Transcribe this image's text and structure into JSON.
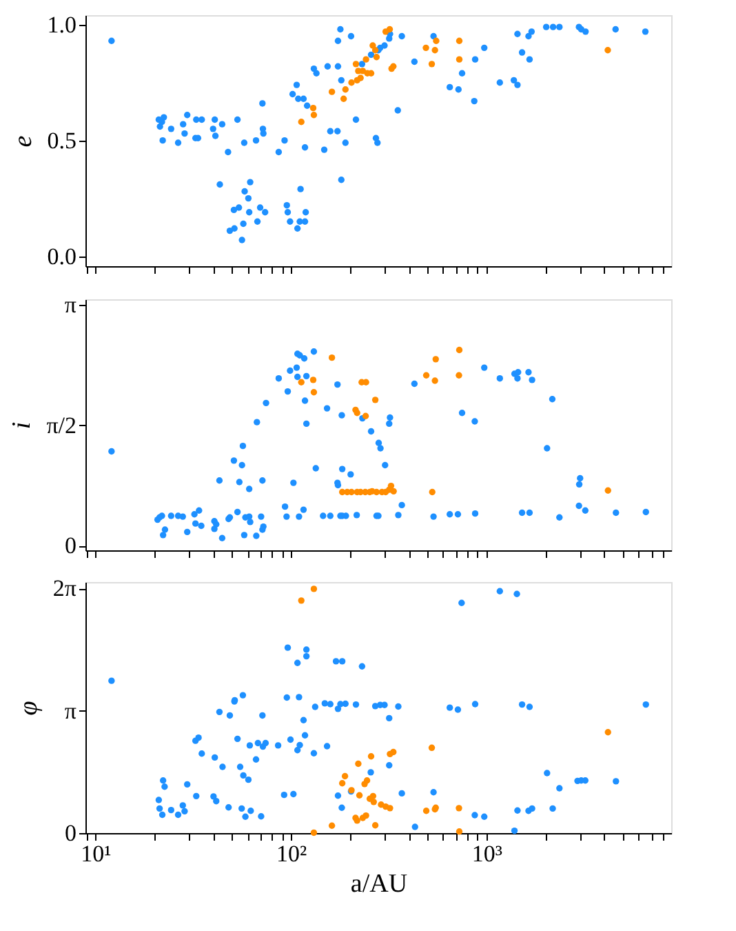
{
  "chart_data": [
    {
      "type": "scatter",
      "ylabel": "e",
      "log": "x",
      "xlim": [
        8.9,
        8800
      ],
      "ylim": [
        -0.043,
        1.041
      ],
      "yticks": [
        {
          "value": 0,
          "label": "0.0"
        },
        0.5,
        {
          "value": 1,
          "label": "1.0"
        }
      ],
      "xticks": [
        {
          "value": 9,
          "label": null
        },
        {
          "value": 10,
          "label": null
        },
        {
          "value": 20,
          "label": null
        },
        {
          "value": 30,
          "label": null
        },
        {
          "value": 40,
          "label": null
        },
        {
          "value": 50,
          "label": null
        },
        {
          "value": 60,
          "label": null
        },
        {
          "value": 70,
          "label": null
        },
        {
          "value": 80,
          "label": null
        },
        {
          "value": 90,
          "label": null
        },
        {
          "value": 100,
          "label": null
        },
        {
          "value": 200,
          "label": null
        },
        {
          "value": 300,
          "label": null
        },
        {
          "value": 400,
          "label": null
        },
        {
          "value": 500,
          "label": null
        },
        {
          "value": 600,
          "label": null
        },
        {
          "value": 700,
          "label": null
        },
        {
          "value": 800,
          "label": null
        },
        {
          "value": 900,
          "label": null
        },
        {
          "value": 1000,
          "label": null
        },
        {
          "value": 2000,
          "label": null
        },
        {
          "value": 3000,
          "label": null
        },
        {
          "value": 4000,
          "label": null
        },
        {
          "value": 5000,
          "label": null
        },
        {
          "value": 6000,
          "label": null
        },
        {
          "value": 7000,
          "label": null
        },
        {
          "value": 8000,
          "label": null
        }
      ],
      "tick_labels": "y",
      "grid": false,
      "legend": false,
      "marker": "circle",
      "series": [
        {
          "color": "#1e90ff",
          "x": [
            12.1,
            179,
            174,
            203,
            369,
            536,
            974,
            1440,
            1700,
            1640,
            2020,
            2190,
            2360,
            2970,
            3050,
            3210,
            4570,
            6490,
            1520,
            1660,
            875,
            428,
            321,
            318,
            301,
            286,
            280,
            257,
            231,
            154,
            174,
            131,
            135,
            181,
            107,
            102,
            109,
            116,
            121,
            71.5,
            1170,
            1380,
            1440,
            649,
            719,
            750,
            866,
            352,
            215,
            159,
            173,
            190,
            272,
            277,
            118,
            148,
            86.6,
            92.8,
            57.7,
            66.3,
            71.9,
            72.3,
            47.7,
            53.3,
            40.8,
            44.5,
            40,
            41.1,
            29.5,
            32.8,
            35,
            21.1,
            22.4,
            21.9,
            21.4,
            24.4,
            28.1,
            28.6,
            32.5,
            33.5,
            22.1,
            26.5,
            43.3,
            61.9,
            58,
            60.6,
            54.2,
            51.1,
            61.2,
            69.6,
            73.8,
            48.7,
            51.4,
            57.1,
            67.4,
            56.2,
            95.3,
            96.3,
            112,
            119,
            99,
            111,
            118,
            108,
            181
          ],
          "values": [
            0.93,
            0.98,
            0.93,
            0.95,
            0.95,
            0.95,
            0.9,
            0.96,
            0.97,
            0.95,
            0.99,
            0.99,
            0.99,
            0.99,
            0.98,
            0.97,
            0.98,
            0.97,
            0.88,
            0.85,
            0.85,
            0.84,
            0.96,
            0.94,
            0.91,
            0.9,
            0.89,
            0.87,
            0.83,
            0.82,
            0.82,
            0.81,
            0.79,
            0.76,
            0.74,
            0.7,
            0.68,
            0.68,
            0.65,
            0.66,
            0.75,
            0.76,
            0.74,
            0.73,
            0.72,
            0.79,
            0.67,
            0.63,
            0.59,
            0.54,
            0.54,
            0.49,
            0.51,
            0.49,
            0.47,
            0.46,
            0.45,
            0.5,
            0.49,
            0.5,
            0.55,
            0.53,
            0.45,
            0.59,
            0.59,
            0.57,
            0.55,
            0.52,
            0.61,
            0.59,
            0.59,
            0.59,
            0.6,
            0.58,
            0.56,
            0.55,
            0.57,
            0.53,
            0.51,
            0.51,
            0.5,
            0.49,
            0.31,
            0.32,
            0.28,
            0.25,
            0.21,
            0.2,
            0.19,
            0.21,
            0.19,
            0.11,
            0.12,
            0.14,
            0.15,
            0.07,
            0.22,
            0.19,
            0.29,
            0.19,
            0.15,
            0.15,
            0.15,
            0.12,
            0.33
          ]
        },
        {
          "color": "#ff8c00",
          "x": [
            320,
            305,
            262,
            270,
            274,
            242,
            215,
            221,
            233,
            246,
            257,
            227,
            218,
            204,
            190,
            162,
            186,
            130,
            131,
            113,
            327,
            334,
            490,
            545,
            553,
            525,
            726,
            726,
            4170
          ],
          "values": [
            0.98,
            0.97,
            0.91,
            0.89,
            0.86,
            0.85,
            0.83,
            0.8,
            0.8,
            0.79,
            0.79,
            0.77,
            0.76,
            0.75,
            0.72,
            0.71,
            0.68,
            0.64,
            0.61,
            0.58,
            0.81,
            0.82,
            0.9,
            0.89,
            0.93,
            0.83,
            0.93,
            0.85,
            0.89
          ]
        }
      ]
    },
    {
      "type": "scatter",
      "ylabel": "i",
      "log": "x",
      "xlim": [
        8.9,
        8800
      ],
      "ylim": [
        -0.059,
        3.21
      ],
      "yticks": [
        0,
        {
          "value": 1.5708,
          "label": "π/2"
        },
        {
          "value": 3.1416,
          "label": "π"
        }
      ],
      "xticks": [
        {
          "value": 9,
          "label": null
        },
        {
          "value": 10,
          "label": null
        },
        {
          "value": 20,
          "label": null
        },
        {
          "value": 30,
          "label": null
        },
        {
          "value": 40,
          "label": null
        },
        {
          "value": 50,
          "label": null
        },
        {
          "value": 60,
          "label": null
        },
        {
          "value": 70,
          "label": null
        },
        {
          "value": 80,
          "label": null
        },
        {
          "value": 90,
          "label": null
        },
        {
          "value": 100,
          "label": null
        },
        {
          "value": 200,
          "label": null
        },
        {
          "value": 300,
          "label": null
        },
        {
          "value": 400,
          "label": null
        },
        {
          "value": 500,
          "label": null
        },
        {
          "value": 600,
          "label": null
        },
        {
          "value": 700,
          "label": null
        },
        {
          "value": 800,
          "label": null
        },
        {
          "value": 900,
          "label": null
        },
        {
          "value": 1000,
          "label": null
        },
        {
          "value": 2000,
          "label": null
        },
        {
          "value": 3000,
          "label": null
        },
        {
          "value": 4000,
          "label": null
        },
        {
          "value": 5000,
          "label": null
        },
        {
          "value": 6000,
          "label": null
        },
        {
          "value": 7000,
          "label": null
        },
        {
          "value": 8000,
          "label": null
        }
      ],
      "tick_labels": "y",
      "grid": false,
      "legend": false,
      "marker": "circle",
      "series": [
        {
          "color": "#1e90ff",
          "x": [
            12.1,
            131,
            108,
            111,
            117,
            99,
            107,
            86.6,
            108,
            120,
            96.3,
            118,
            74.6,
            67,
            120,
            173,
            153,
            182,
            232,
            257,
            281,
            287,
            321,
            318,
            303,
            428,
            974,
            1170,
            1390,
            1450,
            1440,
            1640,
            1710,
            2170,
            750,
            871,
            2040,
            2980,
            3010,
            2970,
            3200,
            4590,
            6530,
            2360,
            1520,
            1660,
            875,
            714,
            649,
            536,
            369,
            354,
            274,
            280,
            217,
            179,
            183,
            191,
            159,
            146,
            202,
            183,
            174,
            173,
            134,
            103,
            93.3,
            95,
            110,
            116,
            70.4,
            72.3,
            71.5,
            66.5,
            57.7,
            61.9,
            61.2,
            58.5,
            53.3,
            48,
            48.7,
            44.5,
            40.6,
            40.6,
            41.5,
            34.8,
            32.5,
            33.9,
            32.1,
            29.5,
            28,
            26.5,
            24.4,
            22.7,
            22.2,
            21.9,
            20.8,
            21.3,
            43.1,
            54.5,
            61.2,
            71.5,
            51.1,
            56.2,
            56.8
          ],
          "values": [
            1.23,
            2.53,
            2.5,
            2.48,
            2.44,
            2.28,
            2.32,
            2.18,
            2.2,
            2.21,
            2.01,
            1.89,
            1.86,
            1.61,
            1.59,
            2.1,
            1.79,
            1.7,
            1.66,
            1.49,
            1.34,
            1.27,
            1.67,
            1.59,
            1.05,
            2.11,
            2.32,
            2.18,
            2.24,
            2.26,
            2.18,
            2.26,
            2.16,
            1.91,
            1.73,
            1.62,
            1.27,
            0.8,
            0.88,
            0.52,
            0.46,
            0.43,
            0.44,
            0.37,
            0.43,
            0.43,
            0.42,
            0.41,
            0.41,
            0.38,
            0.53,
            0.4,
            0.39,
            0.39,
            0.4,
            0.39,
            0.39,
            0.39,
            0.39,
            0.39,
            0.93,
            1.0,
            0.79,
            0.82,
            1.01,
            0.82,
            0.51,
            0.38,
            0.38,
            0.47,
            0.38,
            0.25,
            0.21,
            0.13,
            0.14,
            0.31,
            0.38,
            0.37,
            0.44,
            0.35,
            0.37,
            0.1,
            0.32,
            0.22,
            0.28,
            0.26,
            0.29,
            0.46,
            0.41,
            0.18,
            0.38,
            0.39,
            0.39,
            0.21,
            0.14,
            0.39,
            0.34,
            0.37,
            0.85,
            0.83,
            0.74,
            0.85,
            1.11,
            1.05,
            1.3
          ]
        },
        {
          "color": "#ff8c00",
          "x": [
            162,
            113,
            130,
            131,
            230,
            242,
            214,
            218,
            241,
            270,
            492,
            550,
            545,
            726,
            723,
            528,
            4180,
            183,
            194,
            204,
            218,
            227,
            240,
            253,
            260,
            274,
            292,
            305,
            318,
            325,
            335
          ],
          "values": [
            2.45,
            2.13,
            2.16,
            2.0,
            2.13,
            2.13,
            1.77,
            1.73,
            1.69,
            1.9,
            2.22,
            2.43,
            2.15,
            2.55,
            2.22,
            0.7,
            0.72,
            0.7,
            0.7,
            0.7,
            0.7,
            0.7,
            0.7,
            0.7,
            0.71,
            0.7,
            0.7,
            0.7,
            0.73,
            0.78,
            0.71
          ]
        }
      ]
    },
    {
      "type": "scatter",
      "ylabel": "φ",
      "xlabel": "a/AU",
      "log": "x",
      "xlim": [
        8.9,
        8800
      ],
      "ylim": [
        0,
        6.445
      ],
      "yticks": [
        0,
        {
          "value": 3.1416,
          "label": "π"
        },
        {
          "value": 6.2832,
          "label": "2π"
        }
      ],
      "xticks": [
        {
          "value": 9,
          "label": null
        },
        {
          "value": 10,
          "label": "10¹"
        },
        {
          "value": 20,
          "label": null
        },
        {
          "value": 30,
          "label": null
        },
        {
          "value": 40,
          "label": null
        },
        {
          "value": 50,
          "label": null
        },
        {
          "value": 60,
          "label": null
        },
        {
          "value": 70,
          "label": null
        },
        {
          "value": 80,
          "label": null
        },
        {
          "value": 90,
          "label": null
        },
        {
          "value": 100,
          "label": "10²"
        },
        {
          "value": 200,
          "label": null
        },
        {
          "value": 300,
          "label": null
        },
        {
          "value": 400,
          "label": null
        },
        {
          "value": 500,
          "label": null
        },
        {
          "value": 600,
          "label": null
        },
        {
          "value": 700,
          "label": null
        },
        {
          "value": 800,
          "label": null
        },
        {
          "value": 900,
          "label": null
        },
        {
          "value": 1000,
          "label": "10³"
        },
        {
          "value": 2000,
          "label": null
        },
        {
          "value": 3000,
          "label": null
        },
        {
          "value": 4000,
          "label": null
        },
        {
          "value": 5000,
          "label": null
        },
        {
          "value": 6000,
          "label": null
        },
        {
          "value": 7000,
          "label": null
        },
        {
          "value": 8000,
          "label": null
        }
      ],
      "grid": false,
      "legend": false,
      "marker": "circle",
      "series": [
        {
          "color": "#1e90ff",
          "x": [
            12.1,
            96.3,
            120,
            120,
            108,
            170,
            183,
            231,
            746,
            1170,
            1430,
            95.3,
            110,
            133,
            149,
            159,
            174,
            179,
            190,
            215,
            270,
            286,
            301,
            318,
            354,
            649,
            714,
            875,
            1520,
            1660,
            6530,
            51.6,
            51.4,
            56.8,
            43.1,
            48.7,
            71.5,
            116,
            118,
            99.5,
            108,
            111,
            131,
            153,
            86,
            66.3,
            71.9,
            67.8,
            74.2,
            61.6,
            53.3,
            55,
            57.1,
            60.6,
            44.7,
            40.8,
            35,
            32.5,
            33.7,
            29.5,
            32.8,
            40.2,
            41.5,
            48,
            56,
            58.5,
            62.3,
            70.4,
            22.2,
            22.6,
            21.1,
            21.3,
            22,
            24.4,
            26.5,
            28,
            28.6,
            92.3,
            103,
            174,
            182,
            203,
            256,
            318,
            369,
            536,
            431,
            871,
            974,
            1390,
            1440,
            1640,
            1710,
            2040,
            2180,
            2360,
            2920,
            3050,
            3200,
            4590
          ],
          "values": [
            3.91,
            4.76,
            4.71,
            4.54,
            4.37,
            4.41,
            4.41,
            4.28,
            5.91,
            6.21,
            6.14,
            3.48,
            3.49,
            3.24,
            3.33,
            3.31,
            3.19,
            3.31,
            3.32,
            3.3,
            3.26,
            3.29,
            3.29,
            2.95,
            3.25,
            3.22,
            3.17,
            3.31,
            3.3,
            3.24,
            3.3,
            3.41,
            3.38,
            3.54,
            3.11,
            3.02,
            3.02,
            2.9,
            2.51,
            2.4,
            2.13,
            2.26,
            2.05,
            2.23,
            2.25,
            1.89,
            2.22,
            2.31,
            2.31,
            2.25,
            2.42,
            1.7,
            1.48,
            1.37,
            1.7,
            1.94,
            2.04,
            2.37,
            2.45,
            1.25,
            0.95,
            0.94,
            0.82,
            0.66,
            0.63,
            0.42,
            0.57,
            0.43,
            1.35,
            1.19,
            0.85,
            0.63,
            0.47,
            0.59,
            0.47,
            0.71,
            0.56,
            0.98,
            1.0,
            0.96,
            0.65,
            1.07,
            1.56,
            1.74,
            1.02,
            1.05,
            0.16,
            0.46,
            0.42,
            0.06,
            0.58,
            0.57,
            0.63,
            1.54,
            0.63,
            1.15,
            1.34,
            1.35,
            1.35,
            1.33
          ]
        },
        {
          "color": "#ff8c00",
          "x": [
            113,
            131,
            525,
            4180,
            257,
            221,
            321,
            334,
            189,
            183,
            204,
            224,
            245,
            238,
            253,
            263,
            265,
            289,
            305,
            321,
            214,
            218,
            233,
            242,
            270,
            162,
            131,
            492,
            545,
            550,
            723,
            726
          ],
          "values": [
            5.97,
            6.27,
            2.19,
            2.59,
            1.97,
            1.78,
            2.03,
            2.08,
            1.46,
            1.28,
            1.1,
            0.97,
            1.35,
            1.26,
            0.88,
            0.95,
            0.8,
            0.73,
            0.68,
            0.64,
            0.39,
            0.32,
            0.39,
            0.45,
            0.2,
            0.19,
            0.01,
            0.57,
            0.61,
            0.65,
            0.64,
            0.04
          ]
        }
      ]
    }
  ]
}
